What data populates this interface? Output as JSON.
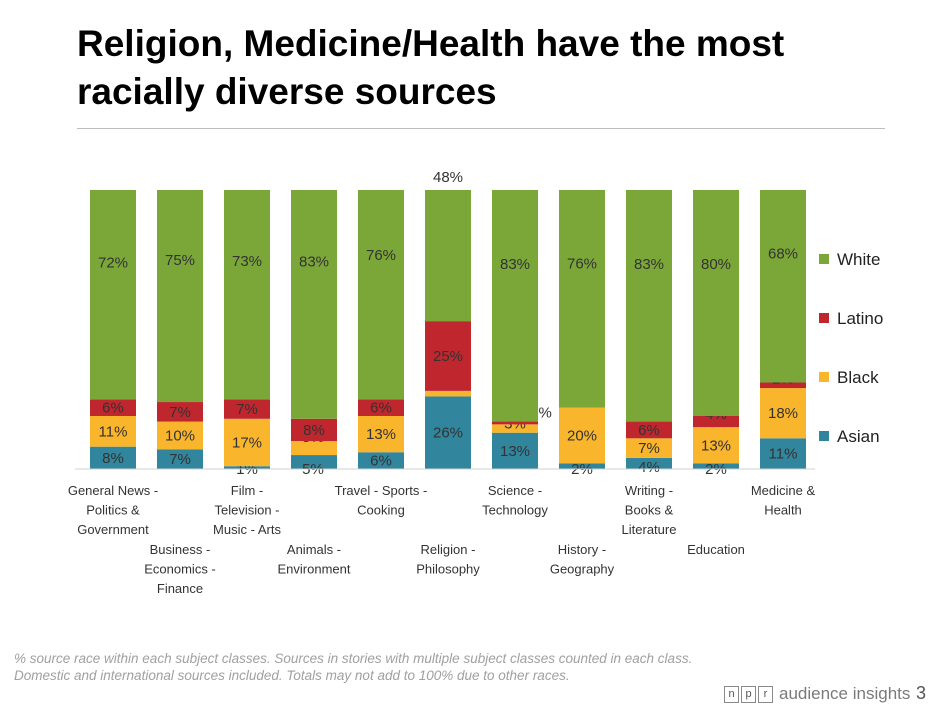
{
  "slide": {
    "title": "Religion, Medicine/Health have the most racially diverse sources",
    "footnote": "% source race within  each subject classes. Sources in stories with  multiple subject classes counted in each class. Domestic and international sources included. Totals may not add to 100% due to other races.",
    "brand_letters": [
      "n",
      "p",
      "r"
    ],
    "brand_text": "audience insights",
    "page_number": "3"
  },
  "chart_data": {
    "type": "bar",
    "stacked": true,
    "categories": [
      "General News - Politics & Government",
      "Business - Economics - Finance",
      "Film - Television - Music - Arts",
      "Animals - Environment",
      "Travel - Sports - Cooking",
      "Religion - Philosophy",
      "Science - Technology",
      "History - Geography",
      "Writing - Books & Literature",
      "Education",
      "Medicine & Health"
    ],
    "category_labels": [
      [
        "General News -",
        "Politics &",
        "Government"
      ],
      [
        "Business -",
        "Economics -",
        "Finance"
      ],
      [
        "Film -",
        "Television -",
        "Music - Arts"
      ],
      [
        "Animals -",
        "Environment"
      ],
      [
        "Travel - Sports -",
        "Cooking"
      ],
      [
        "Religion -",
        "Philosophy"
      ],
      [
        "Science -",
        "Technology"
      ],
      [
        "History -",
        "Geography"
      ],
      [
        "Writing -",
        "Books &",
        "Literature"
      ],
      [
        "Education"
      ],
      [
        "Medicine &",
        "Health"
      ]
    ],
    "series": [
      {
        "name": "Asian",
        "color": "#31859c",
        "values": [
          8,
          7,
          1,
          5,
          6,
          26,
          13,
          2,
          4,
          2,
          11
        ]
      },
      {
        "name": "Black",
        "color": "#f9b52b",
        "values": [
          11,
          10,
          17,
          5,
          13,
          2,
          3,
          20,
          7,
          13,
          18
        ]
      },
      {
        "name": "Latino",
        "color": "#c0262d",
        "values": [
          6,
          7,
          7,
          8,
          6,
          25,
          1,
          0,
          6,
          4,
          2
        ]
      },
      {
        "name": "White",
        "color": "#7ba738",
        "values": [
          72,
          75,
          73,
          83,
          76,
          48,
          83,
          76,
          83,
          80,
          68
        ]
      }
    ],
    "data_labels": [
      {
        "Asian": "8%",
        "Black": "11%",
        "Latino": "6%",
        "White": "72%"
      },
      {
        "Asian": "7%",
        "Black": "10%",
        "Latino": "7%",
        "White": "75%"
      },
      {
        "Asian": "1%",
        "Black": "17%",
        "Latino": "7%",
        "White": "73%"
      },
      {
        "Asian": "5%",
        "Black": "5%",
        "Latino": "8%",
        "White": "83%"
      },
      {
        "Asian": "6%",
        "Black": "13%",
        "Latino": "6%",
        "White": "76%"
      },
      {
        "Asian": "26%",
        "Black": "2%",
        "Latino": "25%",
        "White": "48%"
      },
      {
        "Asian": "13%",
        "Black": "3%",
        "Latino": "1%",
        "White": "83%"
      },
      {
        "Asian": "2%",
        "Black": "20%",
        "Latino": "",
        "White": "76%"
      },
      {
        "Asian": "4%",
        "Black": "7%",
        "Latino": "6%",
        "White": "83%"
      },
      {
        "Asian": "2%",
        "Black": "13%",
        "Latino": "4%",
        "White": "80%"
      },
      {
        "Asian": "11%",
        "Black": "18%",
        "Latino": "2%",
        "White": "68%"
      }
    ],
    "legend": [
      "White",
      "Latino",
      "Black",
      "Asian"
    ],
    "legend_position": "right",
    "ylim": [
      0,
      100
    ],
    "grid": false,
    "title": "",
    "xlabel": "",
    "ylabel": ""
  }
}
